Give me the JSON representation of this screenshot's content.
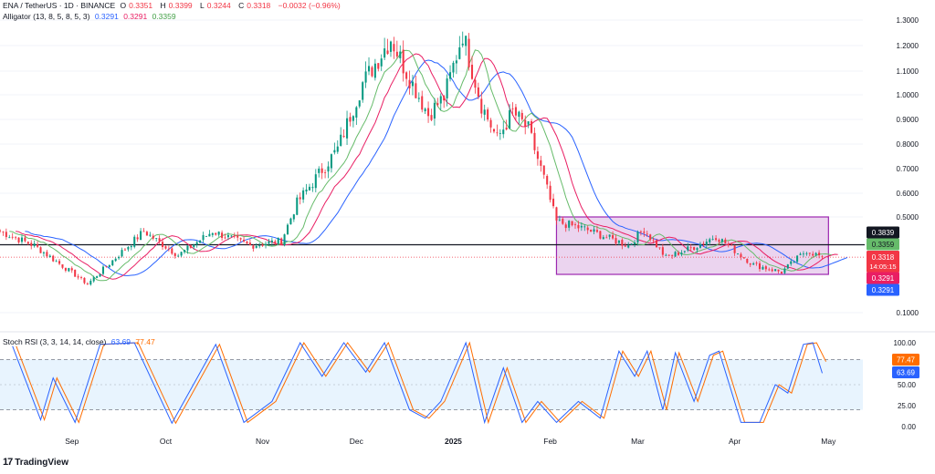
{
  "header": {
    "symbol": "ENA / TetherUS · 1D · BINANCE",
    "ohlc": [
      {
        "k": "O",
        "v": "0.3351"
      },
      {
        "k": "H",
        "v": "0.3399"
      },
      {
        "k": "L",
        "v": "0.3244"
      },
      {
        "k": "C",
        "v": "0.3318"
      },
      {
        "k": "",
        "v": "−0.0032 (−0.96%)"
      }
    ],
    "alligator_label": "Alligator (13, 8, 5, 8, 5, 3)",
    "alligator_values": [
      "0.3291",
      "0.3291",
      "0.3359"
    ],
    "stoch_label": "Stoch RSI (3, 3, 14, 14, close)",
    "stoch_values": [
      "63.69",
      "77.47"
    ]
  },
  "brand": {
    "logo_text": "TradingView"
  },
  "colors": {
    "up": "#089981",
    "down": "#f23645",
    "jaw": "#2962ff",
    "teeth": "#e91e63",
    "lips": "#66bb6a",
    "stoch_k": "#2962ff",
    "stoch_d": "#ff6d00",
    "box_border": "#9c27b0",
    "box_fill": "#9c27b0",
    "band_fill": "#2196f3",
    "hline": "#131722"
  },
  "chart_data": [
    {
      "type": "candlestick",
      "title": "ENA / TetherUS · 1D · BINANCE",
      "y_axis": {
        "ticks": [
          "1.3000",
          "1.2000",
          "1.1000",
          "1.0000",
          "0.9000",
          "0.8000",
          "0.7000",
          "0.6000",
          "0.5000",
          "0.1000"
        ],
        "ylim": [
          0.08,
          1.38
        ]
      },
      "x_axis": {
        "ticks": [
          "Sep",
          "Oct",
          "Nov",
          "Dec",
          "2025",
          "Feb",
          "Mar",
          "Apr",
          "May"
        ],
        "range": [
          "2024-08-09",
          "2025-05-12"
        ]
      },
      "key_points": [
        {
          "date": "2024-08-09",
          "close": 0.44
        },
        {
          "date": "2024-08-20",
          "close": 0.38
        },
        {
          "date": "2024-09-06",
          "close": 0.22
        },
        {
          "date": "2024-09-24",
          "close": 0.44
        },
        {
          "date": "2024-10-05",
          "close": 0.34
        },
        {
          "date": "2024-10-16",
          "close": 0.44
        },
        {
          "date": "2024-10-28",
          "close": 0.38
        },
        {
          "date": "2024-11-07",
          "close": 0.4
        },
        {
          "date": "2024-11-12",
          "close": 0.56
        },
        {
          "date": "2024-11-25",
          "close": 0.78
        },
        {
          "date": "2024-12-03",
          "close": 1.05
        },
        {
          "date": "2024-12-12",
          "close": 1.23
        },
        {
          "date": "2024-12-18",
          "close": 1.07
        },
        {
          "date": "2024-12-24",
          "close": 0.92
        },
        {
          "date": "2024-12-29",
          "close": 0.99
        },
        {
          "date": "2025-01-04",
          "close": 1.25
        },
        {
          "date": "2025-01-10",
          "close": 0.96
        },
        {
          "date": "2025-01-15",
          "close": 0.82
        },
        {
          "date": "2025-01-20",
          "close": 0.93
        },
        {
          "date": "2025-01-25",
          "close": 0.86
        },
        {
          "date": "2025-01-30",
          "close": 0.66
        },
        {
          "date": "2025-02-03",
          "close": 0.48
        },
        {
          "date": "2025-02-12",
          "close": 0.45
        },
        {
          "date": "2025-02-26",
          "close": 0.38
        },
        {
          "date": "2025-03-03",
          "close": 0.45
        },
        {
          "date": "2025-03-10",
          "close": 0.33
        },
        {
          "date": "2025-03-20",
          "close": 0.38
        },
        {
          "date": "2025-03-26",
          "close": 0.42
        },
        {
          "date": "2025-04-07",
          "close": 0.3
        },
        {
          "date": "2025-04-16",
          "close": 0.27
        },
        {
          "date": "2025-04-24",
          "close": 0.36
        },
        {
          "date": "2025-04-29",
          "close": 0.3318
        }
      ],
      "last": {
        "open": 0.3351,
        "high": 0.3399,
        "low": 0.3244,
        "close": 0.3318,
        "countdown": "14:05:15"
      },
      "alligator": {
        "jaw": 0.3291,
        "teeth": 0.3291,
        "lips": 0.3359
      },
      "horizontal_line": 0.3839,
      "range_box": {
        "from": "2025-02-03",
        "to": "2025-05-01",
        "top": 0.5,
        "bottom": 0.26
      },
      "price_labels": [
        {
          "text": "0.3839",
          "kind": "line"
        },
        {
          "text": "0.3359",
          "kind": "lips"
        },
        {
          "text": "0.3318",
          "kind": "last"
        },
        {
          "text": "14:05:15",
          "kind": "last"
        },
        {
          "text": "0.3291",
          "kind": "teeth"
        },
        {
          "text": "0.3291",
          "kind": "jaw"
        }
      ]
    },
    {
      "type": "line",
      "title": "Stoch RSI (3, 3, 14, 14, close)",
      "y_axis": {
        "ticks": [
          "100.00",
          "50.00",
          "25.00",
          "0.00"
        ],
        "ylim": [
          0,
          100
        ],
        "band": [
          20,
          80
        ]
      },
      "series": [
        {
          "name": "K",
          "color": "#2962ff",
          "last": 63.69,
          "label": "63.69"
        },
        {
          "name": "D",
          "color": "#ff6d00",
          "last": 77.47,
          "label": "77.47"
        }
      ],
      "peaks": [
        {
          "date": "2024-08-13",
          "value": 96
        },
        {
          "date": "2024-08-22",
          "value": 8
        },
        {
          "date": "2024-08-26",
          "value": 58
        },
        {
          "date": "2024-09-02",
          "value": 5
        },
        {
          "date": "2024-09-10",
          "value": 98
        },
        {
          "date": "2024-09-21",
          "value": 100
        },
        {
          "date": "2024-10-03",
          "value": 4
        },
        {
          "date": "2024-10-17",
          "value": 98
        },
        {
          "date": "2024-10-26",
          "value": 5
        },
        {
          "date": "2024-11-04",
          "value": 30
        },
        {
          "date": "2024-11-13",
          "value": 100
        },
        {
          "date": "2024-11-20",
          "value": 60
        },
        {
          "date": "2024-11-27",
          "value": 100
        },
        {
          "date": "2024-12-04",
          "value": 65
        },
        {
          "date": "2024-12-10",
          "value": 100
        },
        {
          "date": "2024-12-18",
          "value": 20
        },
        {
          "date": "2024-12-23",
          "value": 10
        },
        {
          "date": "2024-12-28",
          "value": 30
        },
        {
          "date": "2025-01-05",
          "value": 100
        },
        {
          "date": "2025-01-11",
          "value": 5
        },
        {
          "date": "2025-01-17",
          "value": 70
        },
        {
          "date": "2025-01-23",
          "value": 5
        },
        {
          "date": "2025-01-28",
          "value": 30
        },
        {
          "date": "2025-02-03",
          "value": 5
        },
        {
          "date": "2025-02-10",
          "value": 30
        },
        {
          "date": "2025-02-17",
          "value": 10
        },
        {
          "date": "2025-02-23",
          "value": 90
        },
        {
          "date": "2025-02-28",
          "value": 60
        },
        {
          "date": "2025-03-04",
          "value": 90
        },
        {
          "date": "2025-03-09",
          "value": 20
        },
        {
          "date": "2025-03-13",
          "value": 88
        },
        {
          "date": "2025-03-19",
          "value": 30
        },
        {
          "date": "2025-03-24",
          "value": 85
        },
        {
          "date": "2025-03-27",
          "value": 90
        },
        {
          "date": "2025-04-03",
          "value": 5
        },
        {
          "date": "2025-04-09",
          "value": 5
        },
        {
          "date": "2025-04-14",
          "value": 50
        },
        {
          "date": "2025-04-18",
          "value": 40
        },
        {
          "date": "2025-04-23",
          "value": 98
        },
        {
          "date": "2025-04-26",
          "value": 100
        },
        {
          "date": "2025-04-29",
          "value": 63.69
        }
      ]
    }
  ]
}
